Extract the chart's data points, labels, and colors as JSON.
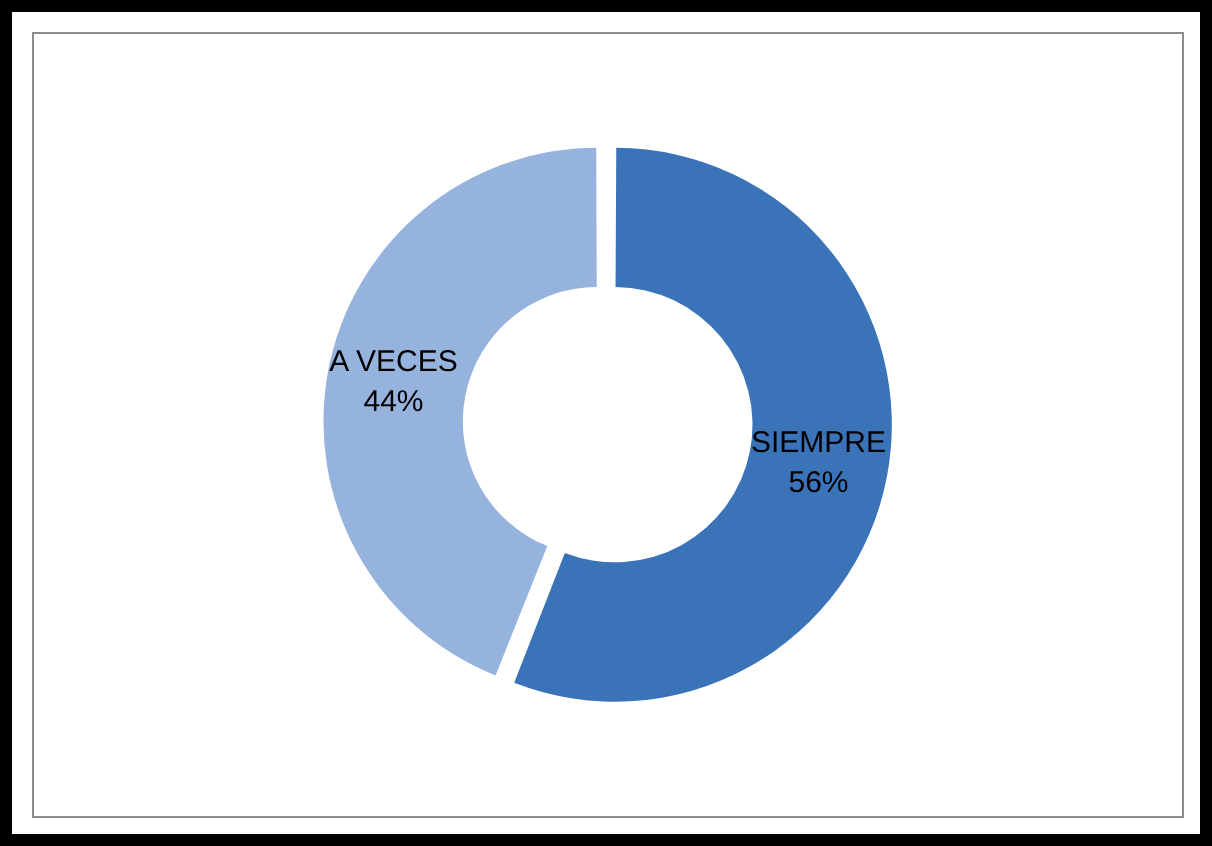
{
  "chart_data": {
    "type": "donut",
    "categories": [
      "SIEMPRE",
      "A VECES"
    ],
    "values": [
      56,
      44
    ],
    "value_labels": [
      "56%",
      "44%"
    ],
    "colors": [
      "#3b73b9",
      "#95b3dc"
    ],
    "legend": false
  }
}
